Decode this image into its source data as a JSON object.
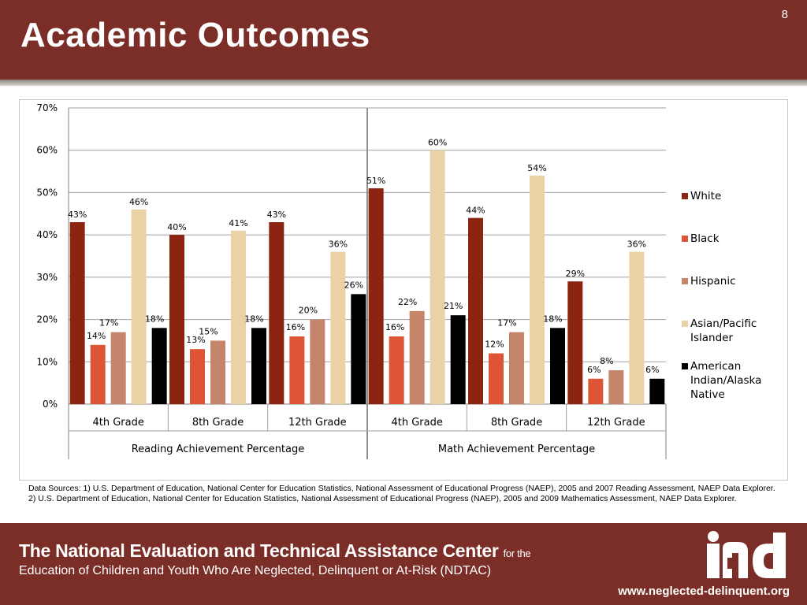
{
  "slide": {
    "title": "Academic Outcomes",
    "number": "8"
  },
  "sources": {
    "line1": "Data Sources: 1) U.S. Department of Education, National Center for Education Statistics, National Assessment of Educational Progress (NAEP), 2005 and 2007 Reading Assessment, NAEP Data Explorer.",
    "line2": " 2) U.S. Department of Education, National Center for Education Statistics, National Assessment of Educational Progress (NAEP), 2005 and 2009 Mathematics Assessment, NAEP Data Explorer."
  },
  "footer": {
    "org_name": "The National Evaluation and Technical Assistance Center",
    "for_the": "for the",
    "subtitle": "Education of Children and Youth Who Are Neglected, Delinquent or At-Risk (NDTAC)",
    "url": "www.neglected-delinquent.org"
  },
  "chart_data": {
    "type": "bar",
    "ylim": [
      0,
      70
    ],
    "yticks": [
      "0%",
      "10%",
      "20%",
      "30%",
      "40%",
      "50%",
      "60%",
      "70%"
    ],
    "grid": true,
    "legend_position": "right",
    "groups": [
      {
        "label": "Reading Achievement Percentage",
        "categories": [
          "4th Grade",
          "8th Grade",
          "12th Grade"
        ]
      },
      {
        "label": "Math Achievement Percentage",
        "categories": [
          "4th Grade",
          "8th Grade",
          "12th Grade"
        ]
      }
    ],
    "series": [
      {
        "name": "White",
        "color": "#8b2512",
        "values": [
          43,
          40,
          43,
          51,
          44,
          29
        ],
        "labels": [
          "43%",
          "40%",
          "43%",
          "51%",
          "44%",
          "29%"
        ]
      },
      {
        "name": "Black",
        "color": "#dd5535",
        "values": [
          14,
          13,
          16,
          16,
          12,
          6
        ],
        "labels": [
          "14%",
          "13%",
          "16%",
          "16%",
          "12%",
          "6%"
        ]
      },
      {
        "name": "Hispanic",
        "color": "#c4856a",
        "values": [
          17,
          15,
          20,
          22,
          17,
          8
        ],
        "labels": [
          "17%",
          "15%",
          "20%",
          "22%",
          "17%",
          "8%"
        ]
      },
      {
        "name": "Asian/Pacific Islander",
        "color": "#ebd2a6",
        "values": [
          46,
          41,
          36,
          60,
          54,
          36
        ],
        "labels": [
          "46%",
          "41%",
          "36%",
          "60%",
          "54%",
          "36%"
        ]
      },
      {
        "name": "American Indian/Alaska Native",
        "color": "#000000",
        "values": [
          18,
          18,
          26,
          21,
          18,
          6
        ],
        "labels": [
          "18%",
          "18%",
          "26%",
          "21%",
          "18%",
          "6%"
        ]
      }
    ],
    "legend_lines": [
      [
        "White"
      ],
      [
        "Black"
      ],
      [
        "Hispanic"
      ],
      [
        "Asian/Pacific",
        "Islander"
      ],
      [
        "American",
        "Indian/Alaska",
        "Native"
      ]
    ]
  }
}
